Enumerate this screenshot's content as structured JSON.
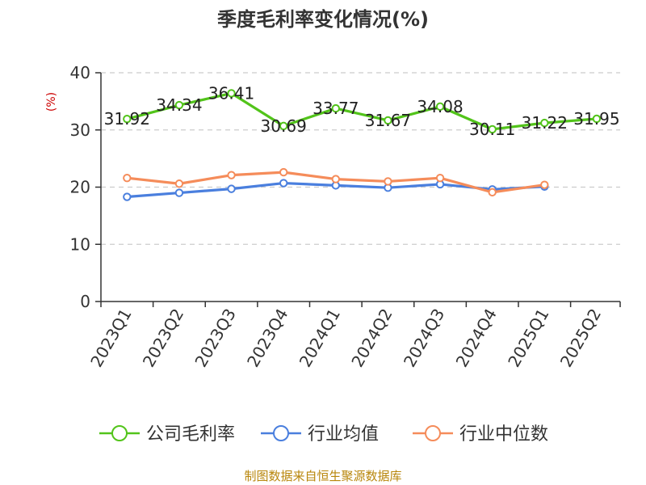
{
  "colors": {
    "gross_margin": "#52c41a",
    "industry_avg": "#4a7fde",
    "industry_median": "#f58c5a",
    "grid": "#cccccc",
    "unit": "#cc0000",
    "source": "#b8860b"
  },
  "chart_data": {
    "type": "line",
    "title": "季度毛利率变化情况(%)",
    "ylabel": "(%)",
    "ylim": [
      0,
      40
    ],
    "yticks": [
      0,
      10,
      20,
      30,
      40
    ],
    "grid": true,
    "legend_position": "bottom",
    "categories": [
      "2023Q1",
      "2023Q2",
      "2023Q3",
      "2023Q4",
      "2024Q1",
      "2024Q2",
      "2024Q3",
      "2024Q4",
      "2025Q1",
      "2025Q2"
    ],
    "series": [
      {
        "name": "公司毛利率",
        "values": [
          31.92,
          34.34,
          36.41,
          30.69,
          33.77,
          31.67,
          34.08,
          30.11,
          31.22,
          31.95
        ],
        "labels": [
          "31.92",
          "34.34",
          "36.41",
          "30.69",
          "33.77",
          "31.67",
          "34.08",
          "30.11",
          "31.22",
          "31.95"
        ]
      },
      {
        "name": "行业均值",
        "values": [
          18.3,
          19.0,
          19.7,
          20.7,
          20.3,
          19.9,
          20.5,
          19.6,
          20.1,
          null
        ]
      },
      {
        "name": "行业中位数",
        "values": [
          21.6,
          20.6,
          22.1,
          22.6,
          21.4,
          21.0,
          21.6,
          19.1,
          20.4,
          null
        ]
      }
    ]
  },
  "source_text": "制图数据来自恒生聚源数据库"
}
